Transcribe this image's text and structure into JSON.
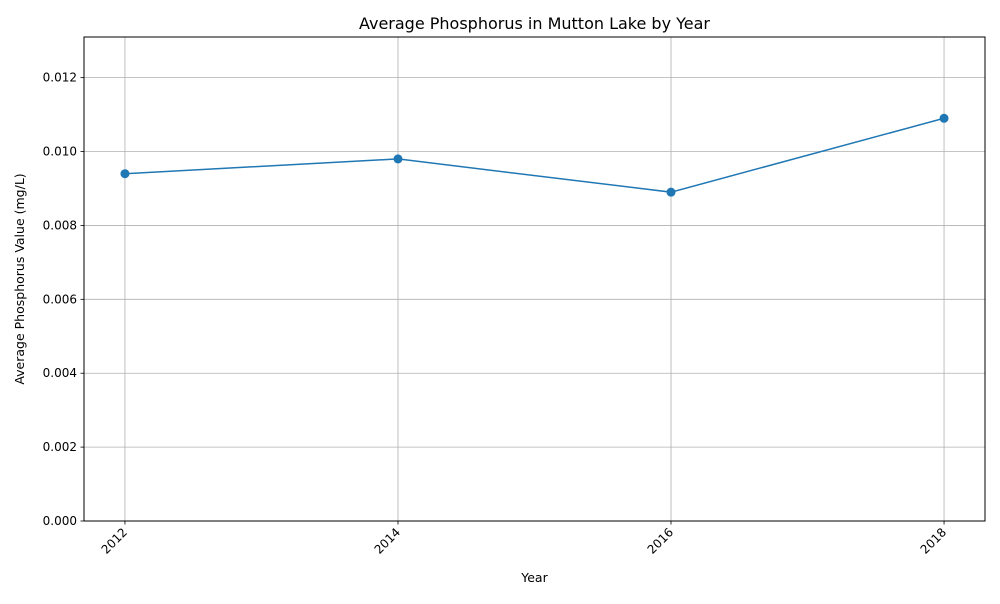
{
  "chart_data": {
    "type": "line",
    "title": "Average Phosphorus in Mutton Lake by Year",
    "xlabel": "Year",
    "ylabel": "Average Phosphorus Value (mg/L)",
    "x": [
      2012,
      2014,
      2016,
      2018
    ],
    "x_tick_labels": [
      "2012",
      "2014",
      "2016",
      "2018"
    ],
    "series": [
      {
        "values": [
          0.0094,
          0.0098,
          0.0089,
          0.0109
        ],
        "color": "#1f77b4",
        "marker": "circle"
      }
    ],
    "xlim": [
      2011.7,
      2018.3
    ],
    "ylim": [
      0,
      0.0131
    ],
    "y_ticks": [
      0,
      0.002,
      0.004,
      0.006,
      0.008,
      0.01,
      0.012
    ],
    "y_tick_labels": [
      "0.000",
      "0.002",
      "0.004",
      "0.006",
      "0.008",
      "0.010",
      "0.012"
    ],
    "grid": true,
    "x_tick_rotation": "45deg"
  }
}
